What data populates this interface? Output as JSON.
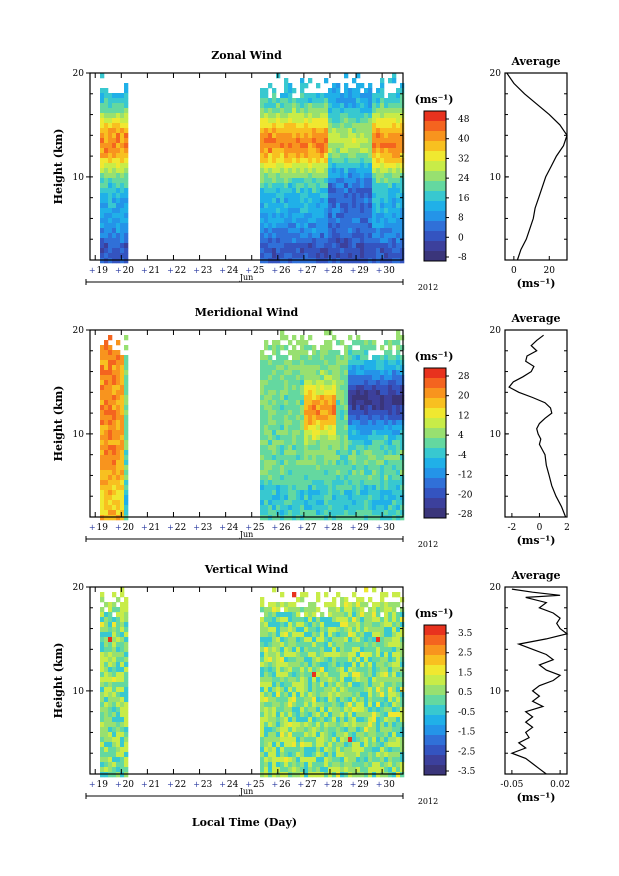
{
  "footer": {
    "xlabel": "Local Time (Day)"
  },
  "chart_data": [
    {
      "type": "heatmap",
      "title": "Zonal Wind",
      "ylabel": "Height (km)",
      "ylim": [
        2,
        20
      ],
      "yticks": [
        "20",
        "10"
      ],
      "xlabel": "Jun",
      "year": "2012",
      "xticks": [
        "19",
        "20",
        "21",
        "22",
        "23",
        "24",
        "25",
        "26",
        "27",
        "28",
        "29",
        "30"
      ],
      "colorbar": {
        "unit": "(ms⁻¹)",
        "labels": [
          "48",
          "40",
          "32",
          "24",
          "16",
          "8",
          "0",
          "-8"
        ],
        "colors": [
          "#e8321e",
          "#f4641f",
          "#f8941e",
          "#f8c020",
          "#f0e830",
          "#c8ec48",
          "#98e070",
          "#64d8a0",
          "#38c8d0",
          "#20b0e8",
          "#2494e8",
          "#3070d8",
          "#3454c0",
          "#3c409c",
          "#3a357a"
        ]
      },
      "average": {
        "title": "Average",
        "xticks": [
          "0",
          "20"
        ],
        "xlabel": "(ms⁻¹)",
        "xlim": [
          -5,
          30
        ],
        "profile": [
          [
            20,
            -4
          ],
          [
            19,
            0
          ],
          [
            18,
            6
          ],
          [
            17,
            13
          ],
          [
            16,
            20
          ],
          [
            15,
            26
          ],
          [
            14,
            30
          ],
          [
            13,
            28
          ],
          [
            12,
            24
          ],
          [
            11,
            21
          ],
          [
            10,
            18
          ],
          [
            9,
            16
          ],
          [
            8,
            14
          ],
          [
            7,
            12
          ],
          [
            6,
            11
          ],
          [
            5,
            9
          ],
          [
            4,
            7
          ],
          [
            3,
            4
          ],
          [
            2,
            2
          ]
        ]
      }
    },
    {
      "type": "heatmap",
      "title": "Meridional Wind",
      "ylabel": "Height (km)",
      "ylim": [
        2,
        20
      ],
      "yticks": [
        "20",
        "10"
      ],
      "xlabel": "Jun",
      "year": "2012",
      "xticks": [
        "19",
        "20",
        "21",
        "22",
        "23",
        "24",
        "25",
        "26",
        "27",
        "28",
        "29",
        "30"
      ],
      "colorbar": {
        "unit": "(ms⁻¹)",
        "labels": [
          "28",
          "20",
          "12",
          "4",
          "-4",
          "-12",
          "-20",
          "-28"
        ],
        "colors": [
          "#e8321e",
          "#f4641f",
          "#f8941e",
          "#f8c020",
          "#f0e830",
          "#c8ec48",
          "#98e070",
          "#64d8a0",
          "#38c8d0",
          "#20b0e8",
          "#2494e8",
          "#3070d8",
          "#3454c0",
          "#3c409c",
          "#3a357a"
        ]
      },
      "average": {
        "title": "Average",
        "xticks": [
          "-2",
          "0",
          "2"
        ],
        "xlabel": "(ms⁻¹)",
        "xlim": [
          -2.5,
          2
        ],
        "profile": [
          [
            19.5,
            0.3
          ],
          [
            19,
            -0.2
          ],
          [
            18.5,
            -0.6
          ],
          [
            18,
            -0.2
          ],
          [
            17.5,
            -0.9
          ],
          [
            17,
            -1.0
          ],
          [
            16.5,
            -0.4
          ],
          [
            16,
            -0.6
          ],
          [
            15.5,
            -1.2
          ],
          [
            15,
            -1.9
          ],
          [
            14.5,
            -2.2
          ],
          [
            14,
            -1.5
          ],
          [
            13.5,
            -0.5
          ],
          [
            13,
            0.4
          ],
          [
            12.5,
            0.8
          ],
          [
            12,
            0.9
          ],
          [
            11.5,
            0.4
          ],
          [
            11,
            0.0
          ],
          [
            10.5,
            -0.2
          ],
          [
            10,
            -0.1
          ],
          [
            9.5,
            0.1
          ],
          [
            9,
            0.0
          ],
          [
            8.5,
            0.2
          ],
          [
            8,
            0.4
          ],
          [
            7,
            0.5
          ],
          [
            6,
            0.7
          ],
          [
            5,
            0.9
          ],
          [
            4,
            1.2
          ],
          [
            3,
            1.6
          ],
          [
            2,
            1.9
          ]
        ]
      }
    },
    {
      "type": "heatmap",
      "title": "Vertical Wind",
      "ylabel": "Height (km)",
      "ylim": [
        2,
        20
      ],
      "yticks": [
        "20",
        "10"
      ],
      "xlabel": "Jun",
      "year": "2012",
      "xticks": [
        "19",
        "20",
        "21",
        "22",
        "23",
        "24",
        "25",
        "26",
        "27",
        "28",
        "29",
        "30"
      ],
      "colorbar": {
        "unit": "(ms⁻¹)",
        "labels": [
          "3.5",
          "2.5",
          "1.5",
          "0.5",
          "-0.5",
          "-1.5",
          "-2.5",
          "-3.5"
        ],
        "colors": [
          "#e8321e",
          "#f4641f",
          "#f8941e",
          "#f8c020",
          "#f0e830",
          "#c8ec48",
          "#98e070",
          "#64d8a0",
          "#38c8d0",
          "#20b0e8",
          "#2494e8",
          "#3070d8",
          "#3454c0",
          "#3c409c",
          "#3a357a"
        ]
      },
      "average": {
        "title": "Average",
        "xticks": [
          "-0.05",
          "0.02"
        ],
        "xlabel": "(ms⁻¹)",
        "xlim": [
          -0.06,
          0.03
        ],
        "profile": [
          [
            19.8,
            -0.05
          ],
          [
            19.5,
            -0.02
          ],
          [
            19.2,
            0.02
          ],
          [
            19,
            -0.03
          ],
          [
            18.5,
            0.0
          ],
          [
            18,
            -0.01
          ],
          [
            17.5,
            0.01
          ],
          [
            17,
            0.02
          ],
          [
            16.5,
            0.015
          ],
          [
            16,
            0.02
          ],
          [
            15.5,
            0.03
          ],
          [
            15,
            0.0
          ],
          [
            14.5,
            -0.04
          ],
          [
            14,
            -0.02
          ],
          [
            13.5,
            0.0
          ],
          [
            13,
            0.01
          ],
          [
            12.5,
            -0.01
          ],
          [
            12,
            0.0
          ],
          [
            11.5,
            0.02
          ],
          [
            11,
            0.01
          ],
          [
            10.5,
            -0.01
          ],
          [
            10,
            -0.02
          ],
          [
            9.5,
            -0.01
          ],
          [
            9,
            -0.02
          ],
          [
            8.5,
            -0.005
          ],
          [
            8,
            -0.03
          ],
          [
            7.5,
            -0.02
          ],
          [
            7,
            -0.03
          ],
          [
            6.5,
            -0.02
          ],
          [
            6,
            -0.03
          ],
          [
            5.5,
            -0.025
          ],
          [
            5,
            -0.04
          ],
          [
            4.5,
            -0.03
          ],
          [
            4,
            -0.05
          ],
          [
            3.5,
            -0.03
          ],
          [
            3,
            -0.02
          ],
          [
            2.5,
            -0.01
          ],
          [
            2,
            0.0
          ]
        ]
      }
    }
  ]
}
